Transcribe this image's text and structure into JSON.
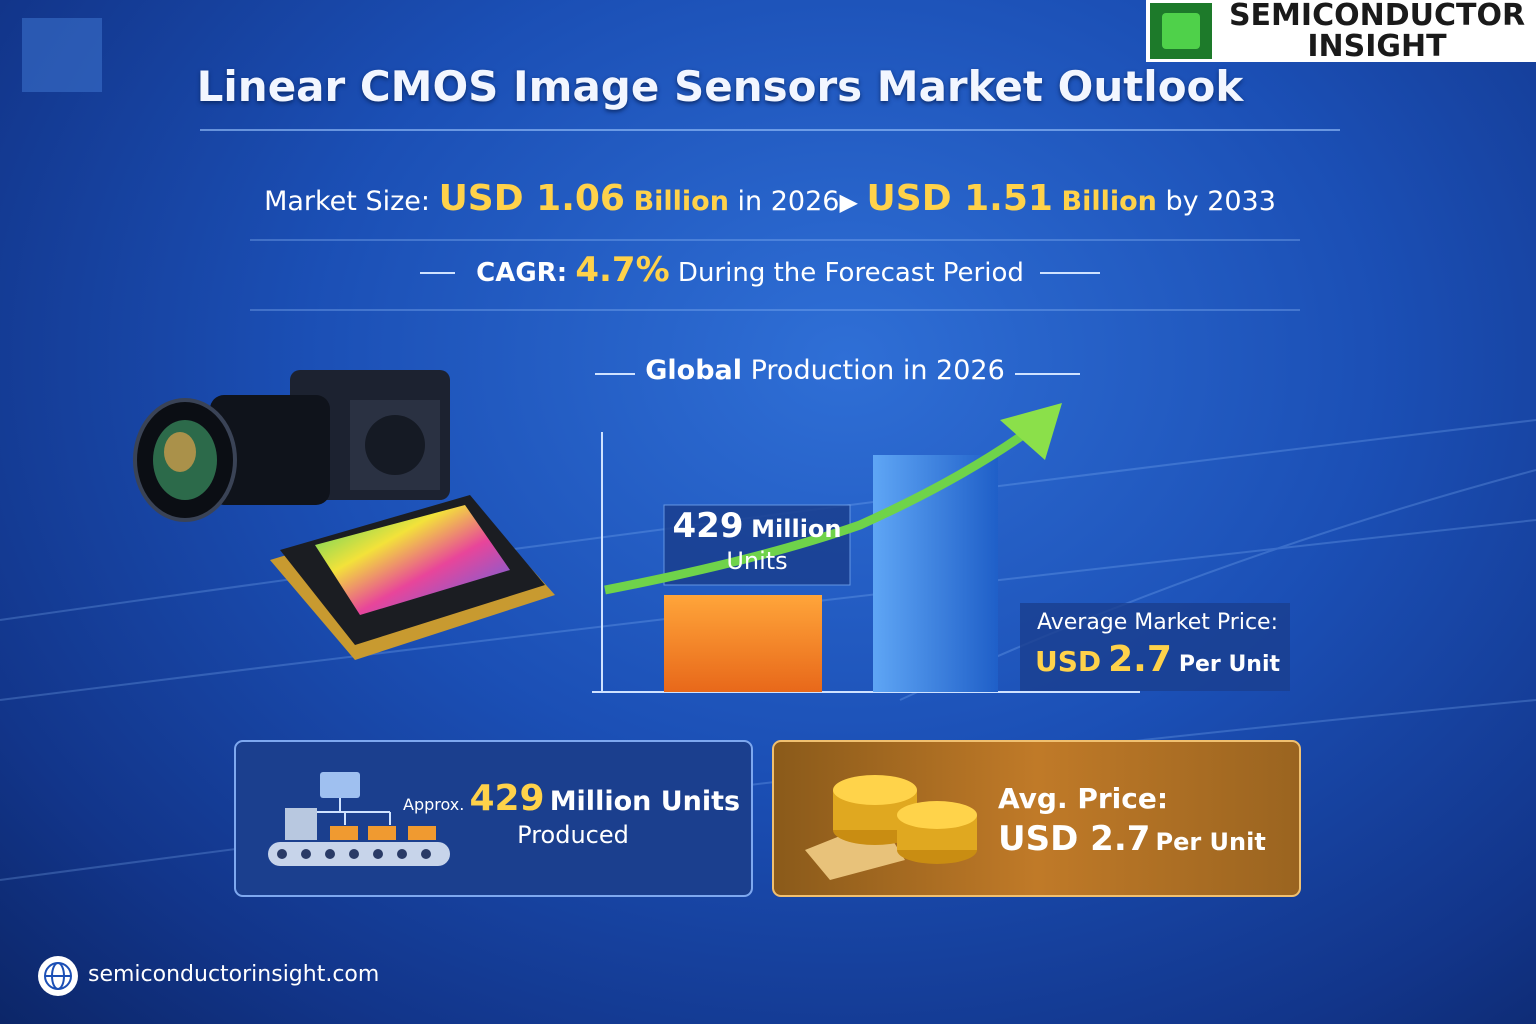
{
  "logo": {
    "line1": "SEMICONDUCTOR",
    "line2": "INSIGHT"
  },
  "title": "Linear CMOS Image Sensors Market Outlook",
  "market_size": {
    "label": "Market Size:",
    "start_value": "USD 1.06",
    "start_unit": "Billion",
    "start_year": "in 2026",
    "end_value": "USD 1.51",
    "end_unit": "Billion",
    "end_year": "by 2033"
  },
  "cagr": {
    "label": "CAGR:",
    "value": "4.7%",
    "note": "During the Forecast Period"
  },
  "production": {
    "heading_bold": "Global",
    "heading_rest": "Production in 2026",
    "bar_label_number": "429",
    "bar_label_unit": "Million",
    "bar_label_line2": "Units",
    "price_label": "Average Market Price:",
    "price_currency": "USD",
    "price_value": "2.7",
    "price_unit": "Per Unit"
  },
  "card_units": {
    "prefix": "Approx.",
    "number": "429",
    "unit": "Million Units",
    "caption": "Produced"
  },
  "card_price": {
    "label": "Avg. Price:",
    "value": "USD 2.7",
    "unit": "Per Unit"
  },
  "footer": {
    "website": "semiconductorinsight.com"
  }
}
